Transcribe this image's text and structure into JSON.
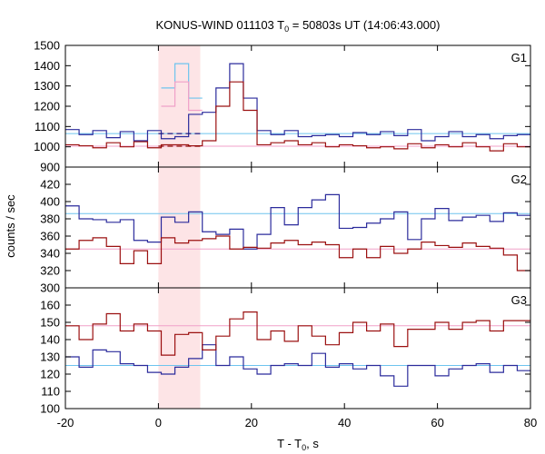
{
  "chart_data": {
    "type": "line",
    "title_prefix": "KONUS-WIND 011103 T",
    "title_sub": "0",
    "title_suffix": " = 50803s UT (14:06:43.000)",
    "xlabel_prefix": "T - T",
    "xlabel_sub": "0",
    "xlabel_suffix": ", s",
    "ylabel": "counts / sec",
    "xlim": [
      -20,
      80
    ],
    "xticks": [
      -20,
      0,
      20,
      40,
      60,
      80
    ],
    "burst_interval": [
      0,
      9
    ],
    "colors": {
      "burst_shade": "#fde4e6",
      "blue_line": "#2b2b9c",
      "red_line": "#9b1010",
      "light_blue": "#6ec4ee",
      "light_red": "#f0a0c8",
      "dashed_blue": "#1a1a80",
      "dashed_red": "#8a0000"
    },
    "panels": [
      {
        "label": "G1",
        "ylim": [
          900,
          1500
        ],
        "yticks": [
          900,
          1000,
          1100,
          1200,
          1300,
          1400,
          1500
        ],
        "series": [
          {
            "color_key": "blue_line",
            "x_start": -20,
            "bin": 2.944,
            "values": [
              1085,
              1060,
              1080,
              1045,
              1075,
              1030,
              1080,
              1040,
              1050,
              1160,
              1170,
              1290,
              1410,
              1240,
              1080,
              1060,
              1080,
              1050,
              1055,
              1060,
              1050,
              1070,
              1060,
              1075,
              1055,
              1085,
              1030,
              1050,
              1075,
              1050,
              1060,
              1040,
              1055,
              1060,
              1040,
              1050
            ]
          },
          {
            "color_key": "red_line",
            "x_start": -20,
            "bin": 2.944,
            "values": [
              1010,
              1005,
              995,
              1020,
              1000,
              1025,
              995,
              1010,
              1010,
              1005,
              1030,
              1200,
              1320,
              1180,
              1010,
              1020,
              1030,
              1010,
              1020,
              1000,
              1010,
              1005,
              995,
              1000,
              990,
              1015,
              995,
              1010,
              1000,
              1020,
              1000,
              980,
              1015,
              1000,
              1005,
              995
            ]
          }
        ],
        "burst_fill": [
          {
            "color_key": "light_blue",
            "values": [
              1290,
              1410,
              1240
            ]
          },
          {
            "color_key": "light_red",
            "values": [
              1200,
              1320,
              1180
            ]
          }
        ],
        "refs": [
          {
            "color_key": "light_blue",
            "value": 1065
          },
          {
            "color_key": "light_red",
            "value": 1003
          }
        ],
        "dashed": [
          {
            "color_key": "dashed_blue",
            "value": 1065
          },
          {
            "color_key": "dashed_red",
            "value": 1003
          }
        ]
      },
      {
        "label": "G2",
        "ylim": [
          300,
          440
        ],
        "yticks": [
          300,
          320,
          340,
          360,
          380,
          400,
          420
        ],
        "series": [
          {
            "color_key": "blue_line",
            "x_start": -20,
            "bin": 2.944,
            "values": [
              395,
              380,
              379,
              376,
              379,
              355,
              353,
              382,
              376,
              388,
              365,
              362,
              368,
              345,
              362,
              393,
              373,
              393,
              402,
              408,
              369,
              370,
              375,
              380,
              388,
              356,
              380,
              392,
              378,
              382,
              384,
              377,
              387,
              384,
              377,
              387
            ]
          },
          {
            "color_key": "red_line",
            "x_start": -20,
            "bin": 2.944,
            "values": [
              345,
              355,
              358,
              348,
              328,
              343,
              328,
              358,
              352,
              355,
              357,
              360,
              345,
              347,
              346,
              352,
              355,
              350,
              353,
              350,
              335,
              345,
              335,
              348,
              340,
              345,
              353,
              349,
              347,
              352,
              348,
              346,
              338,
              320,
              343,
              345
            ]
          }
        ],
        "refs": [
          {
            "color_key": "light_blue",
            "value": 386
          },
          {
            "color_key": "light_red",
            "value": 345
          }
        ]
      },
      {
        "label": "G3",
        "ylim": [
          100,
          170
        ],
        "yticks": [
          100,
          110,
          120,
          130,
          140,
          150,
          160
        ],
        "series": [
          {
            "color_key": "blue_line",
            "x_start": -20,
            "bin": 2.944,
            "values": [
              130,
              124,
              134,
              133,
              126,
              125,
              121,
              120,
              124,
              129,
              137,
              125,
              130,
              123,
              120,
              125,
              126,
              125,
              132,
              124,
              126,
              123,
              125,
              119,
              113,
              125,
              125,
              119,
              123,
              125,
              126,
              121,
              125,
              122,
              125,
              130
            ]
          },
          {
            "color_key": "red_line",
            "x_start": -20,
            "bin": 2.944,
            "values": [
              148,
              140,
              149,
              155,
              145,
              149,
              145,
              131,
              143,
              144,
              134,
              142,
              152,
              156,
              140,
              145,
              139,
              148,
              142,
              137,
              144,
              150,
              145,
              149,
              136,
              146,
              146,
              150,
              146,
              150,
              151,
              145,
              151,
              151,
              156,
              152
            ]
          }
        ],
        "refs": [
          {
            "color_key": "light_blue",
            "value": 125
          },
          {
            "color_key": "light_red",
            "value": 148
          }
        ]
      }
    ]
  }
}
